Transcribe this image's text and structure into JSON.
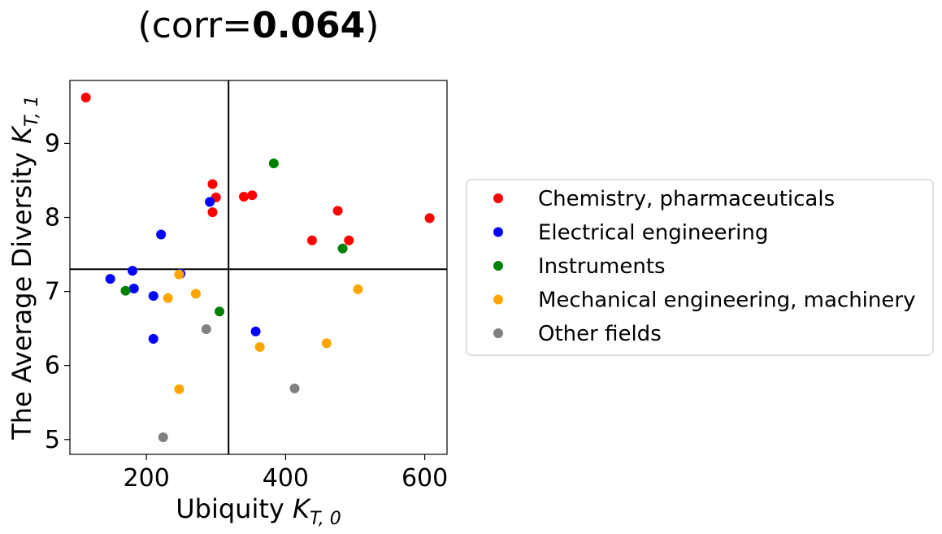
{
  "chart_data": {
    "type": "scatter",
    "title_prefix": "(corr=",
    "title_value": "0.064",
    "title_suffix": ")",
    "xlabel": "Ubiquity ",
    "xlabel_symbol": "K",
    "xlabel_sub": "T, 0",
    "ylabel": "The Average Diversity ",
    "ylabel_symbol": "K",
    "ylabel_sub": "T, 1",
    "xlim": [
      90,
      632
    ],
    "ylim": [
      4.8,
      9.85
    ],
    "xticks": [
      200,
      400,
      600
    ],
    "yticks": [
      5,
      6,
      7,
      8,
      9
    ],
    "grid": false,
    "legend_position": "right",
    "reference_lines": {
      "x": 318,
      "y": 7.3
    },
    "series": [
      {
        "name": "Chemistry, pharmaceuticals",
        "color": "#ff0000",
        "points": [
          [
            113,
            9.62
          ],
          [
            295,
            8.45
          ],
          [
            300,
            8.27
          ],
          [
            295,
            8.07
          ],
          [
            340,
            8.28
          ],
          [
            352,
            8.3
          ],
          [
            438,
            7.69
          ],
          [
            475,
            8.09
          ],
          [
            491,
            7.69
          ],
          [
            607,
            7.99
          ]
        ]
      },
      {
        "name": "Electrical engineering",
        "color": "#0000ff",
        "points": [
          [
            148,
            7.17
          ],
          [
            180,
            7.28
          ],
          [
            182,
            7.04
          ],
          [
            210,
            6.94
          ],
          [
            210,
            6.36
          ],
          [
            221,
            7.77
          ],
          [
            249,
            7.24
          ],
          [
            291,
            8.21
          ],
          [
            357,
            6.46
          ]
        ]
      },
      {
        "name": "Instruments",
        "color": "#008000",
        "points": [
          [
            170,
            7.01
          ],
          [
            305,
            6.73
          ],
          [
            383,
            8.73
          ],
          [
            482,
            7.58
          ]
        ]
      },
      {
        "name": "Mechanical engineering, machinery",
        "color": "#ffa500",
        "points": [
          [
            231,
            6.91
          ],
          [
            247,
            7.23
          ],
          [
            247,
            5.68
          ],
          [
            271,
            6.97
          ],
          [
            363,
            6.25
          ],
          [
            459,
            6.3
          ],
          [
            504,
            7.03
          ]
        ]
      },
      {
        "name": "Other fields",
        "color": "#808080",
        "points": [
          [
            224,
            5.03
          ],
          [
            286,
            6.49
          ],
          [
            413,
            5.69
          ]
        ]
      }
    ]
  }
}
